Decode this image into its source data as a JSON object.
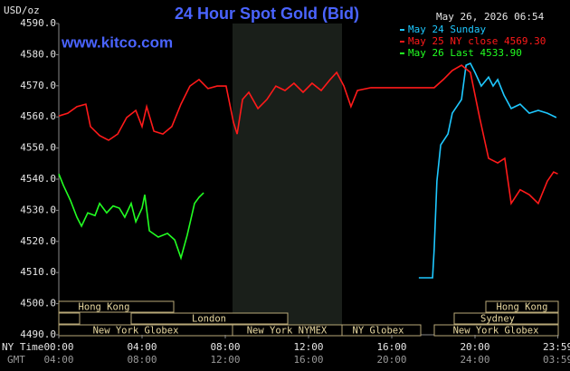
{
  "chart_data": {
    "type": "line",
    "title": "24 Hour Spot Gold (Bid)",
    "site": "www.kitco.com",
    "unit_label": "USD/oz",
    "timestamp": "May 26, 2026 06:54",
    "row_labels": [
      "NY Time",
      "GMT"
    ],
    "gmt_labels": [
      "04:00",
      "08:00",
      "12:00",
      "16:00",
      "20:00",
      "24:00",
      "03:59"
    ],
    "sessions": [
      "Hong Kong",
      "London",
      "New York Globex",
      "New York NYMEX",
      "NY Globex",
      "Hong Kong",
      "Sydney",
      "New York Globex"
    ],
    "xlim": [
      0,
      24
    ],
    "xticks": [
      {
        "value": 0,
        "label": "00:00"
      },
      {
        "value": 4,
        "label": "04:00"
      },
      {
        "value": 8,
        "label": "08:00"
      },
      {
        "value": 12,
        "label": "12:00"
      },
      {
        "value": 16,
        "label": "16:00"
      },
      {
        "value": 20,
        "label": "20:00"
      },
      {
        "value": 23.98,
        "label": "23:59"
      }
    ],
    "ylim": [
      4490,
      4590
    ],
    "yticks": [
      {
        "value": 4490,
        "label": "4490.0"
      },
      {
        "value": 4500,
        "label": "4500.0"
      },
      {
        "value": 4510,
        "label": "4510.0"
      },
      {
        "value": 4520,
        "label": "4520.0"
      },
      {
        "value": 4530,
        "label": "4530.0"
      },
      {
        "value": 4540,
        "label": "4540.0"
      },
      {
        "value": 4550,
        "label": "4550.0"
      },
      {
        "value": 4560,
        "label": "4560.0"
      },
      {
        "value": 4570,
        "label": "4570.0"
      },
      {
        "value": 4580,
        "label": "4580.0"
      },
      {
        "value": 4590,
        "label": "4590.0"
      }
    ],
    "grid": false,
    "series": [
      {
        "name": "May 24 Sunday",
        "color": "#1ec8ff",
        "x": [
          17.3,
          17.96,
          18.04,
          18.17,
          18.35,
          18.7,
          18.91,
          19.35,
          19.57,
          19.78,
          20.0,
          20.3,
          20.65,
          20.87,
          21.09,
          21.39,
          21.74,
          22.17,
          22.61,
          23.04,
          23.48,
          23.91
        ],
        "values": [
          4508.3,
          4508.3,
          4517.6,
          4539.4,
          4551.0,
          4554.5,
          4561.2,
          4565.6,
          4576.6,
          4577.2,
          4574.3,
          4569.9,
          4572.8,
          4569.9,
          4572.0,
          4567.0,
          4562.7,
          4564.1,
          4561.2,
          4562.1,
          4561.2,
          4559.8
        ]
      },
      {
        "name": "May 25 NY close 4569.30",
        "color": "#ff1a1a",
        "x": [
          0,
          0.43,
          0.87,
          1.3,
          1.52,
          1.96,
          2.39,
          2.83,
          3.26,
          3.7,
          4.0,
          4.22,
          4.57,
          5.0,
          5.43,
          5.87,
          6.3,
          6.74,
          7.17,
          7.61,
          8.04,
          8.39,
          8.57,
          8.83,
          9.13,
          9.57,
          10.0,
          10.43,
          10.87,
          11.3,
          11.74,
          12.17,
          12.61,
          13.04,
          13.35,
          13.7,
          14.04,
          14.35,
          15.0,
          18.04,
          18.48,
          18.91,
          19.35,
          19.78,
          20.22,
          20.65,
          21.09,
          21.43,
          21.74,
          22.17,
          22.61,
          23.04,
          23.48,
          23.78,
          23.98
        ],
        "values": [
          4560.3,
          4561.2,
          4563.3,
          4564.1,
          4556.9,
          4554.0,
          4552.5,
          4554.5,
          4559.8,
          4562.1,
          4556.9,
          4563.3,
          4555.4,
          4554.5,
          4556.9,
          4564.1,
          4569.9,
          4572.0,
          4569.1,
          4569.9,
          4569.9,
          4558.3,
          4554.5,
          4565.6,
          4567.9,
          4562.7,
          4565.6,
          4569.9,
          4568.5,
          4570.8,
          4567.9,
          4570.8,
          4568.5,
          4572.0,
          4574.3,
          4569.9,
          4563.3,
          4568.5,
          4569.4,
          4569.4,
          4572.0,
          4574.9,
          4576.6,
          4574.3,
          4559.8,
          4546.7,
          4545.2,
          4546.7,
          4532.2,
          4536.6,
          4535.0,
          4532.2,
          4539.4,
          4542.3,
          4541.7
        ]
      },
      {
        "name": "May 26 Last 4533.90",
        "color": "#22ff22",
        "x": [
          0,
          0.22,
          0.57,
          0.87,
          1.09,
          1.39,
          1.74,
          1.96,
          2.3,
          2.61,
          2.91,
          3.17,
          3.48,
          3.7,
          4.0,
          4.13,
          4.35,
          4.78,
          5.22,
          5.57,
          5.87,
          6.17,
          6.52,
          6.74,
          6.96
        ],
        "values": [
          4541.7,
          4538.0,
          4533.0,
          4527.8,
          4524.9,
          4529.2,
          4528.3,
          4532.2,
          4529.2,
          4531.4,
          4530.7,
          4527.8,
          4532.2,
          4526.3,
          4530.7,
          4535.0,
          4523.4,
          4521.4,
          4522.6,
          4520.5,
          4514.7,
          4522.0,
          4532.2,
          4534.2,
          4535.6
        ]
      }
    ]
  }
}
